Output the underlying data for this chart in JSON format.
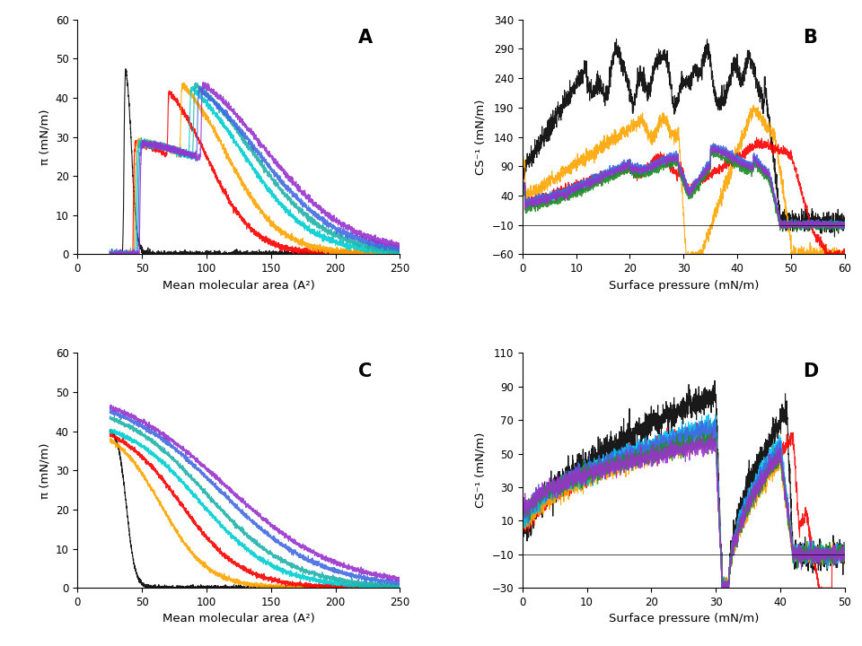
{
  "panel_A": {
    "label": "A",
    "xlabel": "Mean molecular area (A²)",
    "ylabel": "π (mN/m)",
    "xlim": [
      0,
      250
    ],
    "ylim": [
      0,
      60
    ],
    "xticks": [
      0,
      50,
      100,
      150,
      200,
      250
    ],
    "yticks": [
      0,
      10,
      20,
      30,
      40,
      50,
      60
    ]
  },
  "panel_B": {
    "label": "B",
    "xlabel": "Surface pressure (mN/m)",
    "ylabel": "CS⁻¹ (mN/m)",
    "xlim": [
      0,
      60
    ],
    "ylim": [
      -60,
      340
    ],
    "xticks": [
      0,
      10,
      20,
      30,
      40,
      50,
      60
    ],
    "yticks": [
      -60,
      -10,
      40,
      90,
      140,
      190,
      240,
      290,
      340
    ]
  },
  "panel_C": {
    "label": "C",
    "xlabel": "Mean molecular area (A²)",
    "ylabel": "π (mN/m)",
    "xlim": [
      0,
      250
    ],
    "ylim": [
      0,
      60
    ],
    "xticks": [
      0,
      50,
      100,
      150,
      200,
      250
    ],
    "yticks": [
      0,
      10,
      20,
      30,
      40,
      50,
      60
    ]
  },
  "panel_D": {
    "label": "D",
    "xlabel": "Surface pressure (mN/m)",
    "ylabel": "CS⁻¹ (mN/m)",
    "xlim": [
      0,
      50
    ],
    "ylim": [
      -30,
      110
    ],
    "xticks": [
      0,
      10,
      20,
      30,
      40,
      50
    ],
    "yticks": [
      -30,
      -10,
      10,
      30,
      50,
      70,
      90,
      110
    ]
  },
  "colors_A": [
    "#000000",
    "#ff0000",
    "#ffa500",
    "#00ced1",
    "#20b2aa",
    "#4169e1",
    "#9932cc"
  ],
  "colors_B": [
    "#000000",
    "#ffa500",
    "#ff0000",
    "#00bfff",
    "#008080",
    "#4169e1",
    "#228b22",
    "#9932cc"
  ],
  "colors_C": [
    "#000000",
    "#ffa500",
    "#ff0000",
    "#00ced1",
    "#20b2aa",
    "#4169e1",
    "#9932cc"
  ],
  "colors_D": [
    "#000000",
    "#ff0000",
    "#ffa500",
    "#00bfff",
    "#20b2aa",
    "#4169e1",
    "#228b22",
    "#9932cc"
  ]
}
